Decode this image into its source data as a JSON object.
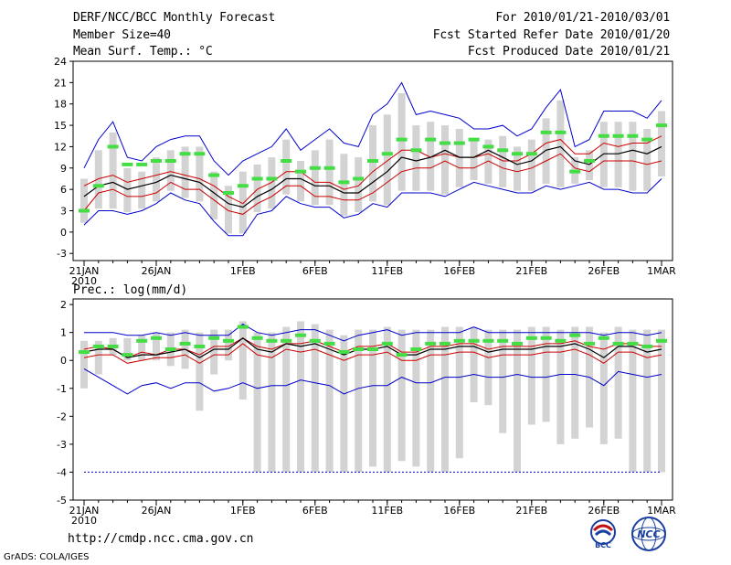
{
  "header": {
    "title": "DERF/NCC/BCC Monthly Forecast",
    "member_size": "Member Size=40",
    "variable": "Mean Surf. Temp.: °C",
    "period": "For 2010/01/21-2010/03/01",
    "started": "Fcst Started Refer Date 2010/01/20",
    "produced": "Fcst Produced Date 2010/01/21"
  },
  "footer": {
    "url": "http://cmdp.ncc.cma.gov.cn",
    "credit": "GrADS: COLA/IGES",
    "logo_left_text": "BCC",
    "logo_right_text": "NCC"
  },
  "colors": {
    "max_min": "#0000cc",
    "spread": "#cc0000",
    "mean": "#000000",
    "median": "#44dd44",
    "box": "#d3d3d3"
  },
  "chart_data": [
    {
      "type": "line",
      "title": "Mean Surf. Temp.: °C",
      "x_tick_labels": [
        "21JAN\n2010",
        "26JAN",
        "1FEB",
        "6FEB",
        "11FEB",
        "16FEB",
        "21FEB",
        "26FEB",
        "1MAR"
      ],
      "x_tick_days": [
        0,
        5,
        11,
        16,
        21,
        26,
        31,
        36,
        40
      ],
      "ylim": [
        -4,
        24
      ],
      "y_ticks": [
        -3,
        0,
        3,
        6,
        9,
        12,
        15,
        18,
        21,
        24
      ],
      "series": [
        {
          "name": "max",
          "values": [
            1,
            3,
            3,
            2.5,
            3,
            4,
            5.5,
            4.5,
            4,
            1.5,
            -0.5,
            -0.5,
            2.5,
            3,
            5,
            4,
            3.5,
            3.5,
            2,
            2.5,
            4,
            3.5,
            5.5,
            5.5,
            5.5,
            5,
            6,
            7,
            6.5,
            6,
            5.5,
            5.5,
            6.5,
            6,
            6.5,
            7,
            6,
            6,
            5.5,
            5.5,
            7.5
          ]
        },
        {
          "name": "p75",
          "values": [
            6.5,
            7.5,
            8,
            7,
            7.5,
            8,
            8.5,
            8,
            7.5,
            6.5,
            5,
            4,
            6,
            7,
            8.5,
            8.5,
            7,
            7,
            6,
            6.5,
            8.5,
            10,
            11.5,
            11.5,
            10.5,
            11,
            10.5,
            10.5,
            11,
            10,
            10,
            11,
            12.5,
            13,
            11,
            11,
            12.5,
            12,
            12.5,
            12.5,
            13.5
          ]
        },
        {
          "name": "mean",
          "values": [
            5,
            6.5,
            7,
            6,
            6.5,
            7,
            8,
            7.5,
            7,
            5.5,
            4,
            3.5,
            5,
            6,
            7.5,
            7.5,
            6.5,
            6.5,
            5.5,
            5.5,
            7,
            8.5,
            10.5,
            10,
            10.5,
            11.5,
            10.5,
            10.5,
            11.5,
            10.5,
            9.5,
            10,
            11.5,
            12,
            10,
            9.5,
            11,
            11,
            11.5,
            11,
            12
          ]
        },
        {
          "name": "p25",
          "values": [
            3,
            5.5,
            6,
            5,
            5,
            5.5,
            7,
            6,
            6,
            4.5,
            3,
            2.5,
            4,
            5,
            6.5,
            6.5,
            5,
            5,
            4.5,
            4.5,
            5.5,
            7,
            8.5,
            9,
            9,
            10,
            9,
            9,
            10,
            9,
            8.5,
            9,
            10,
            11,
            9,
            8.5,
            10,
            10,
            10,
            9.5,
            10
          ]
        },
        {
          "name": "min",
          "values": [
            9,
            13,
            15.5,
            10.5,
            10,
            12,
            13,
            13.5,
            13.5,
            10,
            8,
            10,
            11,
            12,
            14.5,
            11.5,
            13,
            14.5,
            12.5,
            12,
            16.5,
            18,
            21,
            16.5,
            17,
            16.5,
            16,
            14.5,
            14.5,
            15,
            13.5,
            14.5,
            17.5,
            20,
            12,
            13,
            17,
            17,
            17,
            16,
            18.5
          ]
        },
        {
          "name": "median",
          "values": [
            3,
            6.5,
            12,
            9.5,
            9.5,
            10,
            10,
            11,
            11,
            8,
            5.5,
            6.5,
            7.5,
            7.5,
            10,
            8.5,
            9,
            9,
            7,
            7.5,
            10,
            11,
            13,
            11.5,
            13,
            12.5,
            12.5,
            13,
            12,
            11.5,
            11,
            11,
            14,
            14,
            8.5,
            10,
            13.5,
            13.5,
            13.5,
            13,
            15
          ]
        }
      ]
    },
    {
      "type": "line",
      "title": "Prec.: log(mm/d)",
      "x_tick_labels": [
        "21JAN\n2010",
        "26JAN",
        "1FEB",
        "6FEB",
        "11FEB",
        "16FEB",
        "21FEB",
        "26FEB",
        "1MAR"
      ],
      "x_tick_days": [
        0,
        5,
        11,
        16,
        21,
        26,
        31,
        36,
        40
      ],
      "ylim": [
        -5,
        2.2
      ],
      "y_ticks": [
        -5,
        -4,
        -3,
        -2,
        -1,
        0,
        1,
        2
      ],
      "series": [
        {
          "name": "max",
          "values": [
            1,
            1,
            1,
            0.9,
            0.9,
            1,
            0.9,
            1,
            0.9,
            0.9,
            0.9,
            1.3,
            1,
            0.9,
            1,
            1.1,
            1.1,
            0.9,
            0.7,
            0.9,
            1,
            1.1,
            0.9,
            1,
            1,
            1,
            1,
            1.2,
            1,
            1,
            1,
            1,
            1,
            1,
            1,
            1,
            0.9,
            1,
            1,
            0.9,
            1
          ]
        },
        {
          "name": "p75",
          "values": [
            0.4,
            0.5,
            0.4,
            0.1,
            0.3,
            0.2,
            0.4,
            0.4,
            0.2,
            0.5,
            0.5,
            0.8,
            0.5,
            0.4,
            0.6,
            0.6,
            0.7,
            0.5,
            0.3,
            0.5,
            0.5,
            0.6,
            0.3,
            0.3,
            0.5,
            0.5,
            0.6,
            0.6,
            0.4,
            0.5,
            0.5,
            0.5,
            0.6,
            0.6,
            0.7,
            0.5,
            0.4,
            0.6,
            0.6,
            0.5,
            0.5
          ]
        },
        {
          "name": "mean",
          "values": [
            0.3,
            0.4,
            0.4,
            0.1,
            0.2,
            0.2,
            0.3,
            0.4,
            0.1,
            0.4,
            0.4,
            0.8,
            0.4,
            0.3,
            0.6,
            0.5,
            0.6,
            0.4,
            0.2,
            0.4,
            0.4,
            0.5,
            0.2,
            0.2,
            0.4,
            0.4,
            0.5,
            0.5,
            0.3,
            0.4,
            0.4,
            0.4,
            0.5,
            0.5,
            0.6,
            0.4,
            0.1,
            0.5,
            0.5,
            0.3,
            0.4
          ]
        },
        {
          "name": "p25",
          "values": [
            0.1,
            0.2,
            0.2,
            -0.1,
            0,
            0.1,
            0.1,
            0.2,
            -0.1,
            0.2,
            0.2,
            0.6,
            0.2,
            0.1,
            0.4,
            0.3,
            0.4,
            0.2,
            0,
            0.2,
            0.2,
            0.3,
            0,
            0,
            0.2,
            0.2,
            0.3,
            0.3,
            0.1,
            0.2,
            0.2,
            0.2,
            0.3,
            0.3,
            0.4,
            0.2,
            -0.1,
            0.3,
            0.3,
            0.1,
            0.2
          ]
        },
        {
          "name": "min",
          "values": [
            -0.3,
            -0.6,
            -0.9,
            -1.2,
            -0.9,
            -0.8,
            -1,
            -0.8,
            -0.8,
            -1.1,
            -1,
            -0.8,
            -1,
            -0.9,
            -0.9,
            -0.7,
            -0.8,
            -0.9,
            -1.2,
            -1,
            -0.9,
            -0.9,
            -0.6,
            -0.8,
            -0.8,
            -0.6,
            -0.6,
            -0.5,
            -0.6,
            -0.6,
            -0.5,
            -0.6,
            -0.6,
            -0.5,
            -0.5,
            -0.6,
            -0.9,
            -0.4,
            -0.5,
            -0.6,
            -0.5
          ]
        },
        {
          "name": "median",
          "values": [
            0.3,
            0.5,
            0.5,
            0.2,
            0.7,
            0.8,
            0.4,
            0.6,
            0.5,
            0.8,
            0.7,
            1.2,
            0.8,
            0.7,
            0.7,
            0.9,
            0.7,
            0.6,
            0.3,
            0.4,
            0.4,
            0.6,
            0.2,
            0.4,
            0.6,
            0.6,
            0.7,
            0.7,
            0.7,
            0.7,
            0.6,
            0.8,
            0.8,
            0.7,
            0.9,
            0.6,
            0.8,
            0.6,
            0.6,
            0.5,
            0.7
          ]
        },
        {
          "name": "floor",
          "values": [
            -4,
            -4,
            -4,
            -4,
            -4,
            -4,
            -4,
            -4,
            -4,
            -4,
            -4,
            -4,
            -4,
            -4,
            -4,
            -4,
            -4,
            -4,
            -4,
            -4,
            -4,
            -4,
            -4,
            -4,
            -4,
            -4,
            -4,
            -4,
            -4,
            -4,
            -4,
            -4,
            -4,
            -4,
            -4,
            -4,
            -4,
            -4,
            -4,
            -4,
            -4
          ]
        }
      ],
      "box_bottom": [
        -1,
        -0.5,
        0.2,
        0,
        0,
        0,
        -0.2,
        -0.3,
        -1.8,
        -0.5,
        0,
        -1.4,
        -4,
        -4,
        -4,
        -4,
        -4,
        -4,
        -4,
        -4,
        -3.8,
        -4,
        -3.6,
        -3.8,
        -4,
        -4,
        -3.5,
        -1.5,
        -1.6,
        -2.6,
        -4,
        -2.3,
        -2.2,
        -3,
        -2.8,
        -2.4,
        -3,
        -2.8,
        -4,
        -4,
        -4
      ],
      "box_top": [
        0.7,
        0.7,
        0.8,
        0.8,
        0.9,
        1,
        1,
        1.1,
        1,
        1.1,
        1.1,
        1.4,
        1,
        1,
        1.2,
        1.4,
        1.3,
        1.1,
        0.9,
        1.1,
        1.1,
        1.2,
        1.1,
        1.1,
        1.1,
        1.2,
        1.2,
        1.2,
        1.1,
        1.1,
        1.1,
        1.2,
        1.2,
        1.1,
        1.2,
        1.2,
        1,
        1.2,
        1.1,
        1.1,
        1.1
      ]
    }
  ]
}
